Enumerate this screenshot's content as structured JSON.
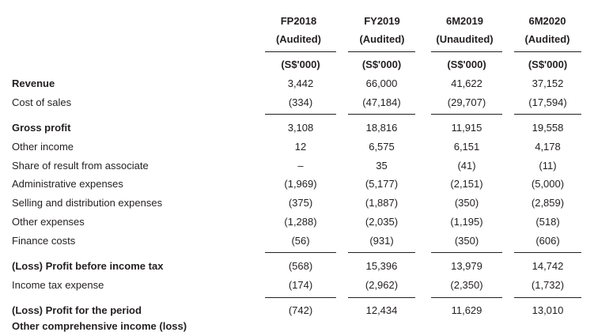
{
  "columns": [
    {
      "period": "FP2018",
      "status": "(Audited)",
      "unit": "(S$'000)"
    },
    {
      "period": "FY2019",
      "status": "(Audited)",
      "unit": "(S$'000)"
    },
    {
      "period": "6M2019",
      "status": "(Unaudited)",
      "unit": "(S$'000)"
    },
    {
      "period": "6M2020",
      "status": "(Audited)",
      "unit": "(S$'000)"
    }
  ],
  "rows": [
    {
      "label": "Revenue",
      "bold": true,
      "values": [
        "3,442",
        "66,000",
        "41,622",
        "37,152"
      ]
    },
    {
      "label": "Cost of sales",
      "bold": false,
      "values": [
        "(334)",
        "(47,184)",
        "(29,707)",
        "(17,594)"
      ]
    },
    {
      "label": "Gross profit",
      "bold": true,
      "values": [
        "3,108",
        "18,816",
        "11,915",
        "19,558"
      ]
    },
    {
      "label": "Other income",
      "bold": false,
      "values": [
        "12",
        "6,575",
        "6,151",
        "4,178"
      ]
    },
    {
      "label": "Share of result from associate",
      "bold": false,
      "values": [
        "–",
        "35",
        "(41)",
        "(11)"
      ]
    },
    {
      "label": "Administrative expenses",
      "bold": false,
      "values": [
        "(1,969)",
        "(5,177)",
        "(2,151)",
        "(5,000)"
      ]
    },
    {
      "label": "Selling and distribution expenses",
      "bold": false,
      "values": [
        "(375)",
        "(1,887)",
        "(350)",
        "(2,859)"
      ]
    },
    {
      "label": "Other expenses",
      "bold": false,
      "values": [
        "(1,288)",
        "(2,035)",
        "(1,195)",
        "(518)"
      ]
    },
    {
      "label": "Finance costs",
      "bold": false,
      "values": [
        "(56)",
        "(931)",
        "(350)",
        "(606)"
      ]
    },
    {
      "label": "(Loss) Profit before income tax",
      "bold": true,
      "values": [
        "(568)",
        "15,396",
        "13,979",
        "14,742"
      ]
    },
    {
      "label": "Income tax expense",
      "bold": false,
      "values": [
        "(174)",
        "(2,962)",
        "(2,350)",
        "(1,732)"
      ]
    },
    {
      "label": "(Loss) Profit for the period",
      "bold": true,
      "values": [
        "(742)",
        "12,434",
        "11,629",
        "13,010"
      ]
    }
  ],
  "cut_off_label": "Other comprehensive income (loss)"
}
